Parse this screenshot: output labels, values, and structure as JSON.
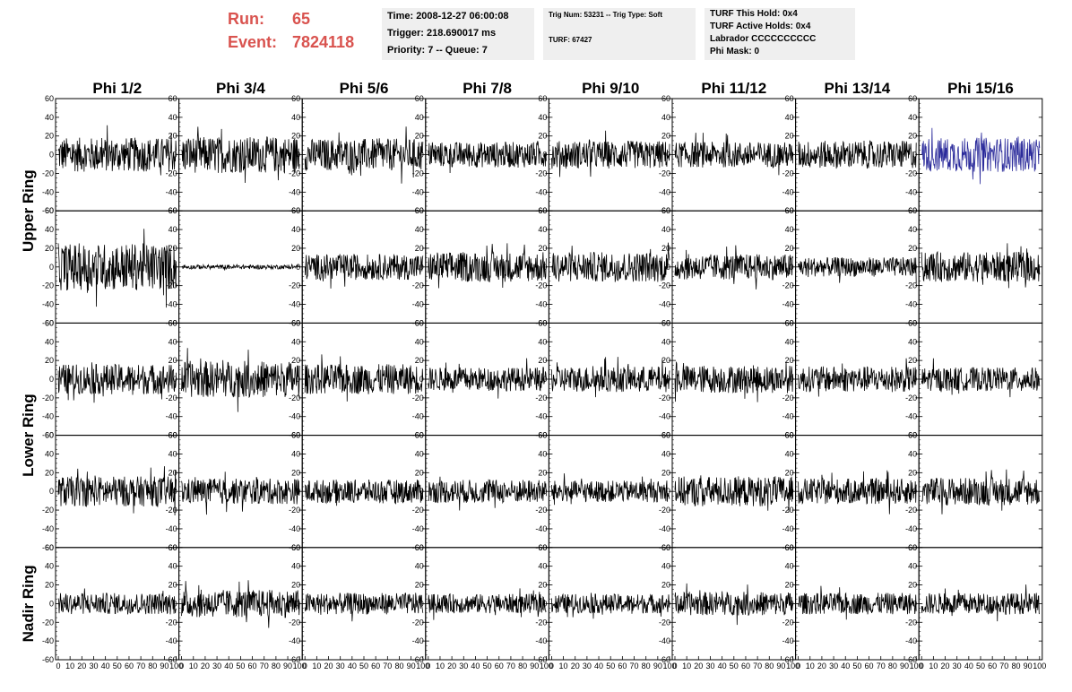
{
  "header": {
    "run_label": "Run:",
    "run_value": "65",
    "event_label": "Event:",
    "event_value": "7824118",
    "time_box": {
      "time": "Time: 2008-12-27 06:00:08",
      "trigger": "Trigger: 218.690017 ms",
      "priority": "Priority: 7 -- Queue: 7"
    },
    "trig_box": {
      "trig": "Trig Num: 53231 -- Trig Type: Soft",
      "turf": "TURF: 67427"
    },
    "turf_box": {
      "this_hold": "TURF This Hold: 0x4",
      "active_holds": "TURF Active Holds: 0x4",
      "labrador": "Labrador CCCCCCCCCC",
      "phi_mask": "Phi Mask: 0"
    },
    "colors": {
      "run_event": "#d9534f",
      "box_bg": "#efefef"
    }
  },
  "grid": {
    "columns": [
      "Phi 1/2",
      "Phi 3/4",
      "Phi 5/6",
      "Phi 7/8",
      "Phi 9/10",
      "Phi 11/12",
      "Phi 13/14",
      "Phi 15/16"
    ],
    "rings": [
      {
        "label": "Upper Ring"
      },
      {
        "label": "Lower Ring"
      },
      {
        "label": "Nadir Ring"
      }
    ]
  },
  "chart_data": {
    "type": "line",
    "x_range": [
      0,
      100
    ],
    "y_range": [
      -60,
      60
    ],
    "y_ticks": [
      -60,
      -40,
      -20,
      0,
      20,
      40,
      60
    ],
    "x_tick_labels": [
      "0",
      "10",
      "20",
      "30",
      "40",
      "50",
      "60",
      "70",
      "80",
      "90",
      "100"
    ],
    "grid": false,
    "trace_color": "#000000",
    "highlight_color": "#2b2b9b",
    "panels": [
      [
        {
          "amplitude": 16,
          "highlight": false
        },
        {
          "amplitude": 17,
          "highlight": false
        },
        {
          "amplitude": 15,
          "highlight": false
        },
        {
          "amplitude": 12,
          "highlight": false
        },
        {
          "amplitude": 13,
          "highlight": false
        },
        {
          "amplitude": 12,
          "highlight": false
        },
        {
          "amplitude": 13,
          "highlight": false
        },
        {
          "amplitude": 16,
          "highlight": true
        }
      ],
      [
        {
          "amplitude": 22,
          "highlight": false
        },
        {
          "amplitude": 2,
          "highlight": false
        },
        {
          "amplitude": 12,
          "highlight": false
        },
        {
          "amplitude": 14,
          "highlight": false
        },
        {
          "amplitude": 14,
          "highlight": false
        },
        {
          "amplitude": 12,
          "highlight": false
        },
        {
          "amplitude": 9,
          "highlight": false
        },
        {
          "amplitude": 14,
          "highlight": false
        }
      ],
      [
        {
          "amplitude": 14,
          "highlight": false
        },
        {
          "amplitude": 17,
          "highlight": false
        },
        {
          "amplitude": 14,
          "highlight": false
        },
        {
          "amplitude": 11,
          "highlight": false
        },
        {
          "amplitude": 12,
          "highlight": false
        },
        {
          "amplitude": 13,
          "highlight": false
        },
        {
          "amplitude": 12,
          "highlight": false
        },
        {
          "amplitude": 11,
          "highlight": false
        }
      ],
      [
        {
          "amplitude": 14,
          "highlight": false
        },
        {
          "amplitude": 12,
          "highlight": false
        },
        {
          "amplitude": 11,
          "highlight": false
        },
        {
          "amplitude": 11,
          "highlight": false
        },
        {
          "amplitude": 10,
          "highlight": false
        },
        {
          "amplitude": 14,
          "highlight": false
        },
        {
          "amplitude": 12,
          "highlight": false
        },
        {
          "amplitude": 13,
          "highlight": false
        }
      ],
      [
        {
          "amplitude": 10,
          "highlight": false
        },
        {
          "amplitude": 13,
          "highlight": false
        },
        {
          "amplitude": 10,
          "highlight": false
        },
        {
          "amplitude": 9,
          "highlight": false
        },
        {
          "amplitude": 9,
          "highlight": false
        },
        {
          "amplitude": 11,
          "highlight": false
        },
        {
          "amplitude": 10,
          "highlight": false
        },
        {
          "amplitude": 10,
          "highlight": false
        }
      ]
    ]
  }
}
